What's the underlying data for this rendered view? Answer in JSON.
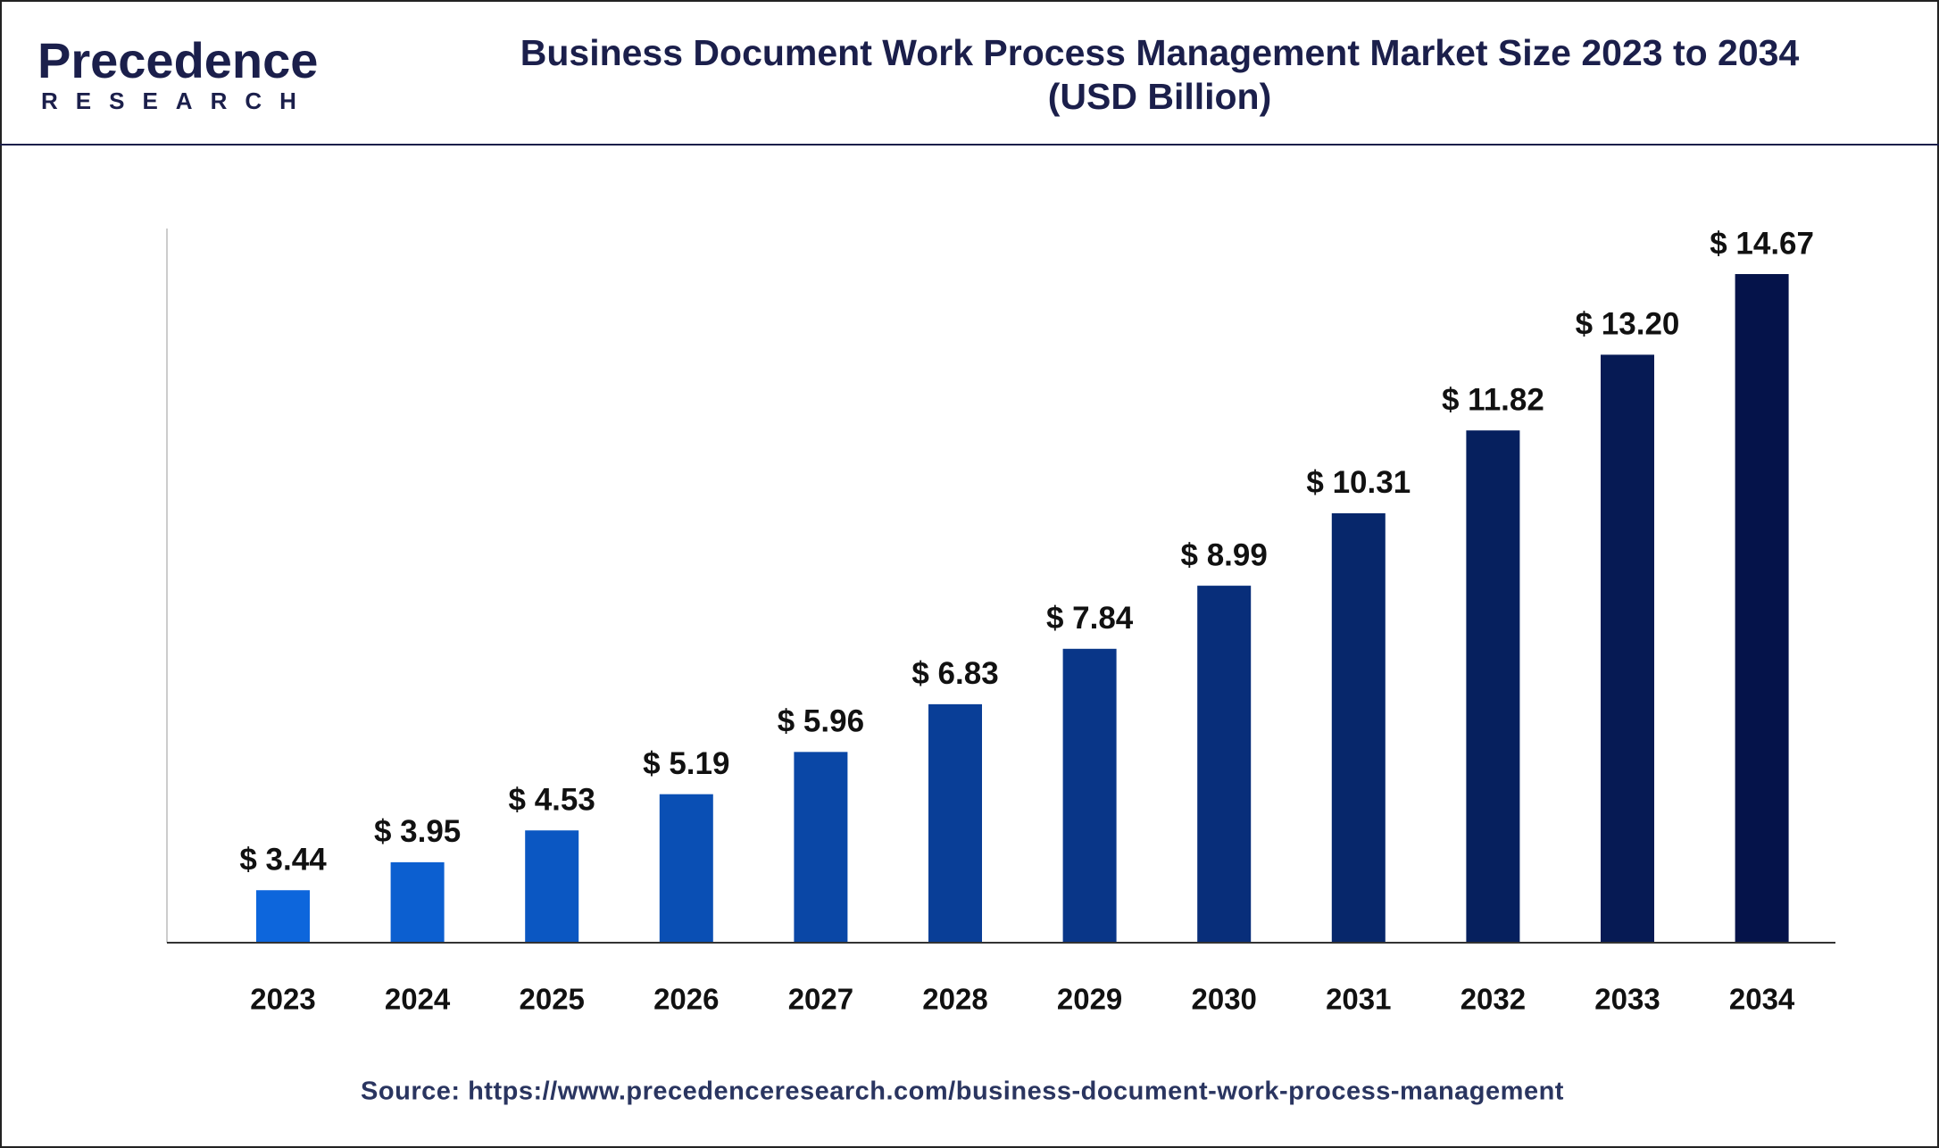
{
  "logo": {
    "name": "Precedence",
    "tagline": "RESEARCH"
  },
  "chart_data": {
    "type": "bar",
    "title": "Business Document Work Process Management Market Size 2023 to 2034",
    "subtitle": "(USD Billion)",
    "categories": [
      "2023",
      "2024",
      "2025",
      "2026",
      "2027",
      "2028",
      "2029",
      "2030",
      "2031",
      "2032",
      "2033",
      "2034"
    ],
    "values": [
      3.44,
      3.95,
      4.53,
      5.19,
      5.96,
      6.83,
      7.84,
      8.99,
      10.31,
      11.82,
      13.2,
      14.67
    ],
    "value_labels": [
      "$ 3.44",
      "$ 3.95",
      "$ 4.53",
      "$ 5.19",
      "$ 5.96",
      "$ 6.83",
      "$ 7.84",
      "$ 8.99",
      "$ 10.31",
      "$ 11.82",
      "$ 13.20",
      "$ 14.67"
    ],
    "colors": [
      "#0d66dc",
      "#0c5fd0",
      "#0b57c2",
      "#0a4fb4",
      "#0a47a6",
      "#093e97",
      "#093688",
      "#082e7a",
      "#07276b",
      "#06205e",
      "#061a54",
      "#05134a"
    ],
    "ylim": [
      2.5,
      15.5
    ],
    "source": "Source: https://www.precedenceresearch.com/business-document-work-process-management"
  }
}
